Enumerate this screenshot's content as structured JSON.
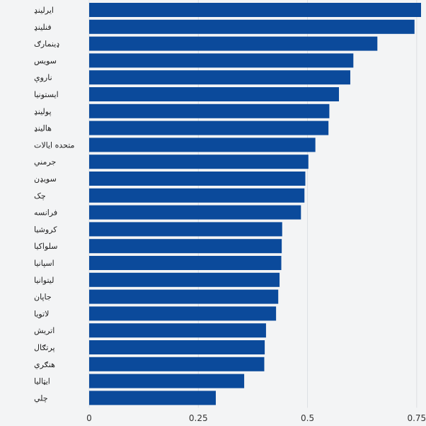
{
  "chart_data": {
    "type": "bar",
    "orientation": "horizontal",
    "categories": [
      "ایرلینډ",
      "فنلینډ",
      "ډینمارګ",
      "سویس",
      "ناروې",
      "ایستونیا",
      "پولینډ",
      "هالینډ",
      "متحده ایالات",
      "جرمني",
      "سویډن",
      "چک",
      "فرانسه",
      "کروشیا",
      "سلواکیا",
      "اسپانیا",
      "لیتوانیا",
      "جاپان",
      "لاتویا",
      "اتریش",
      "پرتګال",
      "هنګري",
      "ایټالیا",
      "چلي"
    ],
    "values": [
      0.76,
      0.745,
      0.66,
      0.605,
      0.598,
      0.572,
      0.55,
      0.548,
      0.518,
      0.502,
      0.495,
      0.493,
      0.485,
      0.442,
      0.441,
      0.44,
      0.436,
      0.433,
      0.428,
      0.405,
      0.402,
      0.401,
      0.355,
      0.29
    ],
    "xlim": [
      0,
      0.76
    ],
    "xticks": [
      0,
      0.25,
      0.5,
      0.75
    ],
    "xtick_labels": [
      "0",
      "0.25",
      "0.5",
      "0.75"
    ],
    "grid": "vertical",
    "bar_color": "#0b4a9b"
  }
}
